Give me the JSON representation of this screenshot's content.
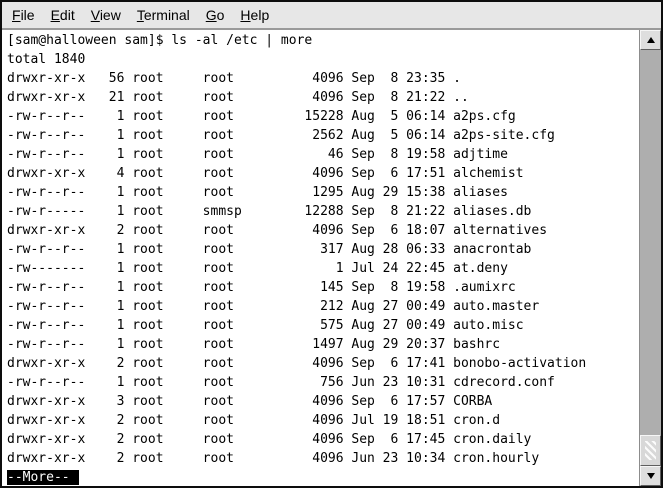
{
  "menu": {
    "items": [
      {
        "label": "File"
      },
      {
        "label": "Edit"
      },
      {
        "label": "View"
      },
      {
        "label": "Terminal"
      },
      {
        "label": "Go"
      },
      {
        "label": "Help"
      }
    ]
  },
  "terminal": {
    "prompt": "[sam@halloween sam]$",
    "command": "ls -al /etc | more",
    "total_line": "total 1840",
    "files": [
      {
        "perms": "drwxr-xr-x",
        "links": 56,
        "owner": "root",
        "group": "root",
        "size": 4096,
        "month": "Sep",
        "day": 8,
        "time": "23:35",
        "name": "."
      },
      {
        "perms": "drwxr-xr-x",
        "links": 21,
        "owner": "root",
        "group": "root",
        "size": 4096,
        "month": "Sep",
        "day": 8,
        "time": "21:22",
        "name": ".."
      },
      {
        "perms": "-rw-r--r--",
        "links": 1,
        "owner": "root",
        "group": "root",
        "size": 15228,
        "month": "Aug",
        "day": 5,
        "time": "06:14",
        "name": "a2ps.cfg"
      },
      {
        "perms": "-rw-r--r--",
        "links": 1,
        "owner": "root",
        "group": "root",
        "size": 2562,
        "month": "Aug",
        "day": 5,
        "time": "06:14",
        "name": "a2ps-site.cfg"
      },
      {
        "perms": "-rw-r--r--",
        "links": 1,
        "owner": "root",
        "group": "root",
        "size": 46,
        "month": "Sep",
        "day": 8,
        "time": "19:58",
        "name": "adjtime"
      },
      {
        "perms": "drwxr-xr-x",
        "links": 4,
        "owner": "root",
        "group": "root",
        "size": 4096,
        "month": "Sep",
        "day": 6,
        "time": "17:51",
        "name": "alchemist"
      },
      {
        "perms": "-rw-r--r--",
        "links": 1,
        "owner": "root",
        "group": "root",
        "size": 1295,
        "month": "Aug",
        "day": 29,
        "time": "15:38",
        "name": "aliases"
      },
      {
        "perms": "-rw-r-----",
        "links": 1,
        "owner": "root",
        "group": "smmsp",
        "size": 12288,
        "month": "Sep",
        "day": 8,
        "time": "21:22",
        "name": "aliases.db"
      },
      {
        "perms": "drwxr-xr-x",
        "links": 2,
        "owner": "root",
        "group": "root",
        "size": 4096,
        "month": "Sep",
        "day": 6,
        "time": "18:07",
        "name": "alternatives"
      },
      {
        "perms": "-rw-r--r--",
        "links": 1,
        "owner": "root",
        "group": "root",
        "size": 317,
        "month": "Aug",
        "day": 28,
        "time": "06:33",
        "name": "anacrontab"
      },
      {
        "perms": "-rw-------",
        "links": 1,
        "owner": "root",
        "group": "root",
        "size": 1,
        "month": "Jul",
        "day": 24,
        "time": "22:45",
        "name": "at.deny"
      },
      {
        "perms": "-rw-r--r--",
        "links": 1,
        "owner": "root",
        "group": "root",
        "size": 145,
        "month": "Sep",
        "day": 8,
        "time": "19:58",
        "name": ".aumixrc"
      },
      {
        "perms": "-rw-r--r--",
        "links": 1,
        "owner": "root",
        "group": "root",
        "size": 212,
        "month": "Aug",
        "day": 27,
        "time": "00:49",
        "name": "auto.master"
      },
      {
        "perms": "-rw-r--r--",
        "links": 1,
        "owner": "root",
        "group": "root",
        "size": 575,
        "month": "Aug",
        "day": 27,
        "time": "00:49",
        "name": "auto.misc"
      },
      {
        "perms": "-rw-r--r--",
        "links": 1,
        "owner": "root",
        "group": "root",
        "size": 1497,
        "month": "Aug",
        "day": 29,
        "time": "20:37",
        "name": "bashrc"
      },
      {
        "perms": "drwxr-xr-x",
        "links": 2,
        "owner": "root",
        "group": "root",
        "size": 4096,
        "month": "Sep",
        "day": 6,
        "time": "17:41",
        "name": "bonobo-activation"
      },
      {
        "perms": "-rw-r--r--",
        "links": 1,
        "owner": "root",
        "group": "root",
        "size": 756,
        "month": "Jun",
        "day": 23,
        "time": "10:31",
        "name": "cdrecord.conf"
      },
      {
        "perms": "drwxr-xr-x",
        "links": 3,
        "owner": "root",
        "group": "root",
        "size": 4096,
        "month": "Sep",
        "day": 6,
        "time": "17:57",
        "name": "CORBA"
      },
      {
        "perms": "drwxr-xr-x",
        "links": 2,
        "owner": "root",
        "group": "root",
        "size": 4096,
        "month": "Jul",
        "day": 19,
        "time": "18:51",
        "name": "cron.d"
      },
      {
        "perms": "drwxr-xr-x",
        "links": 2,
        "owner": "root",
        "group": "root",
        "size": 4096,
        "month": "Sep",
        "day": 6,
        "time": "17:45",
        "name": "cron.daily"
      },
      {
        "perms": "drwxr-xr-x",
        "links": 2,
        "owner": "root",
        "group": "root",
        "size": 4096,
        "month": "Jun",
        "day": 23,
        "time": "10:34",
        "name": "cron.hourly"
      }
    ],
    "more_prompt": "--More--"
  },
  "icons": {
    "scroll_up": "black up triangle",
    "scroll_down": "black down triangle",
    "thumb_grip": "diagonal hatch lines"
  },
  "colors": {
    "terminal_bg": "#ffffff",
    "terminal_text": "#000000",
    "menubar_bg": "#e7e7e7",
    "reverse_bg": "#000000",
    "reverse_fg": "#ffffff",
    "scrollbar_trough": "#aeaeae",
    "scrollbar_thumb": "#d8d8d8"
  }
}
